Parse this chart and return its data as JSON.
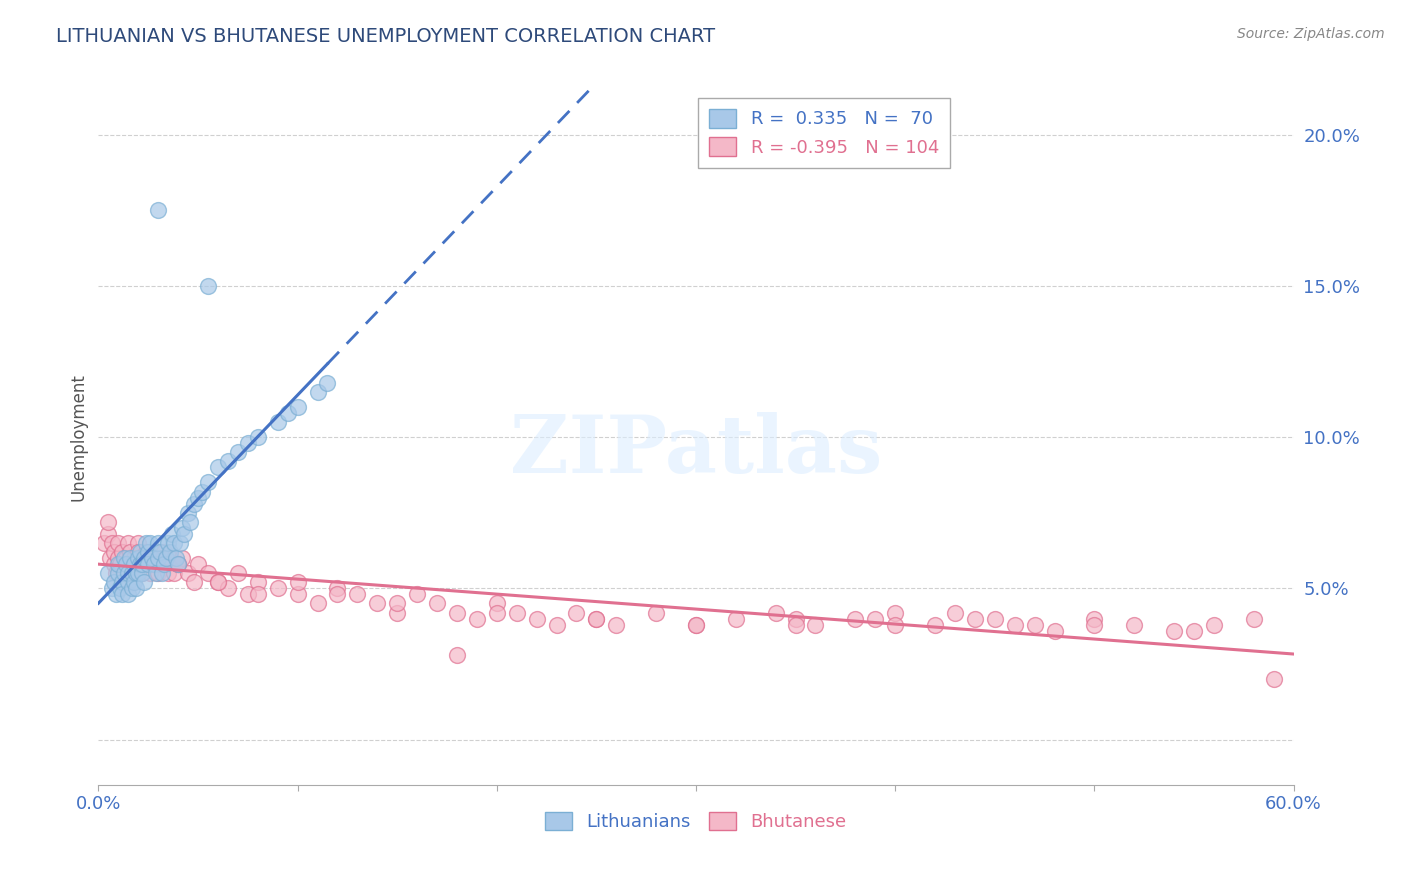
{
  "title": "LITHUANIAN VS BHUTANESE UNEMPLOYMENT CORRELATION CHART",
  "source": "Source: ZipAtlas.com",
  "ylabel": "Unemployment",
  "background_color": "#ffffff",
  "grid_color": "#d0d0d0",
  "lithuanian_color": "#a8c8e8",
  "lithuanian_edge": "#7bafd4",
  "bhutanese_color": "#f4b8c8",
  "bhutanese_edge": "#e07090",
  "trendline_lit_color": "#4472c4",
  "trendline_bhu_color": "#e07090",
  "watermark": "ZIPatlas",
  "xmin": 0.0,
  "xmax": 0.6,
  "ymin": -0.015,
  "ymax": 0.215,
  "ytick_values": [
    0.0,
    0.05,
    0.1,
    0.15,
    0.2
  ],
  "ytick_labels": [
    "",
    "5.0%",
    "10.0%",
    "15.0%",
    "20.0%"
  ],
  "xtick_values": [
    0.0,
    0.1,
    0.2,
    0.3,
    0.4,
    0.5,
    0.6
  ],
  "xtick_labels": [
    "0.0%",
    "",
    "",
    "",
    "",
    "",
    "60.0%"
  ],
  "lit_x": [
    0.005,
    0.007,
    0.008,
    0.009,
    0.01,
    0.01,
    0.011,
    0.012,
    0.012,
    0.013,
    0.013,
    0.014,
    0.015,
    0.015,
    0.015,
    0.016,
    0.017,
    0.017,
    0.018,
    0.018,
    0.019,
    0.019,
    0.02,
    0.02,
    0.021,
    0.021,
    0.022,
    0.022,
    0.023,
    0.023,
    0.024,
    0.025,
    0.025,
    0.026,
    0.027,
    0.028,
    0.029,
    0.03,
    0.03,
    0.031,
    0.032,
    0.033,
    0.034,
    0.035,
    0.036,
    0.037,
    0.038,
    0.039,
    0.04,
    0.041,
    0.042,
    0.043,
    0.045,
    0.046,
    0.048,
    0.05,
    0.052,
    0.055,
    0.06,
    0.065,
    0.07,
    0.075,
    0.08,
    0.09,
    0.095,
    0.1,
    0.11,
    0.115,
    0.03,
    0.055
  ],
  "lit_y": [
    0.055,
    0.05,
    0.052,
    0.048,
    0.055,
    0.058,
    0.05,
    0.052,
    0.048,
    0.055,
    0.06,
    0.058,
    0.052,
    0.055,
    0.048,
    0.06,
    0.055,
    0.05,
    0.058,
    0.052,
    0.055,
    0.05,
    0.055,
    0.06,
    0.058,
    0.062,
    0.055,
    0.058,
    0.052,
    0.06,
    0.065,
    0.062,
    0.058,
    0.065,
    0.06,
    0.058,
    0.055,
    0.06,
    0.065,
    0.062,
    0.055,
    0.058,
    0.06,
    0.065,
    0.062,
    0.068,
    0.065,
    0.06,
    0.058,
    0.065,
    0.07,
    0.068,
    0.075,
    0.072,
    0.078,
    0.08,
    0.082,
    0.085,
    0.09,
    0.092,
    0.095,
    0.098,
    0.1,
    0.105,
    0.108,
    0.11,
    0.115,
    0.118,
    0.175,
    0.15
  ],
  "bhu_x": [
    0.003,
    0.005,
    0.005,
    0.006,
    0.007,
    0.008,
    0.008,
    0.009,
    0.01,
    0.01,
    0.011,
    0.012,
    0.013,
    0.014,
    0.015,
    0.015,
    0.016,
    0.017,
    0.018,
    0.019,
    0.02,
    0.02,
    0.021,
    0.022,
    0.023,
    0.024,
    0.025,
    0.026,
    0.027,
    0.028,
    0.029,
    0.03,
    0.031,
    0.032,
    0.033,
    0.034,
    0.035,
    0.036,
    0.038,
    0.04,
    0.042,
    0.045,
    0.048,
    0.05,
    0.055,
    0.06,
    0.065,
    0.07,
    0.075,
    0.08,
    0.09,
    0.1,
    0.11,
    0.12,
    0.13,
    0.14,
    0.15,
    0.16,
    0.17,
    0.18,
    0.19,
    0.2,
    0.21,
    0.22,
    0.23,
    0.24,
    0.25,
    0.26,
    0.28,
    0.3,
    0.32,
    0.34,
    0.36,
    0.38,
    0.4,
    0.42,
    0.44,
    0.46,
    0.48,
    0.5,
    0.52,
    0.54,
    0.56,
    0.58,
    0.04,
    0.06,
    0.08,
    0.1,
    0.12,
    0.15,
    0.2,
    0.25,
    0.3,
    0.35,
    0.4,
    0.45,
    0.5,
    0.55,
    0.18,
    0.35,
    0.43,
    0.47,
    0.39,
    0.59
  ],
  "bhu_y": [
    0.065,
    0.068,
    0.072,
    0.06,
    0.065,
    0.058,
    0.062,
    0.055,
    0.06,
    0.065,
    0.058,
    0.062,
    0.055,
    0.06,
    0.065,
    0.058,
    0.062,
    0.055,
    0.06,
    0.058,
    0.065,
    0.062,
    0.058,
    0.055,
    0.06,
    0.062,
    0.058,
    0.055,
    0.06,
    0.058,
    0.062,
    0.055,
    0.058,
    0.06,
    0.062,
    0.058,
    0.055,
    0.06,
    0.055,
    0.058,
    0.06,
    0.055,
    0.052,
    0.058,
    0.055,
    0.052,
    0.05,
    0.055,
    0.048,
    0.052,
    0.05,
    0.048,
    0.045,
    0.05,
    0.048,
    0.045,
    0.042,
    0.048,
    0.045,
    0.042,
    0.04,
    0.045,
    0.042,
    0.04,
    0.038,
    0.042,
    0.04,
    0.038,
    0.042,
    0.038,
    0.04,
    0.042,
    0.038,
    0.04,
    0.042,
    0.038,
    0.04,
    0.038,
    0.036,
    0.04,
    0.038,
    0.036,
    0.038,
    0.04,
    0.058,
    0.052,
    0.048,
    0.052,
    0.048,
    0.045,
    0.042,
    0.04,
    0.038,
    0.04,
    0.038,
    0.04,
    0.038,
    0.036,
    0.028,
    0.038,
    0.042,
    0.038,
    0.04,
    0.02
  ]
}
